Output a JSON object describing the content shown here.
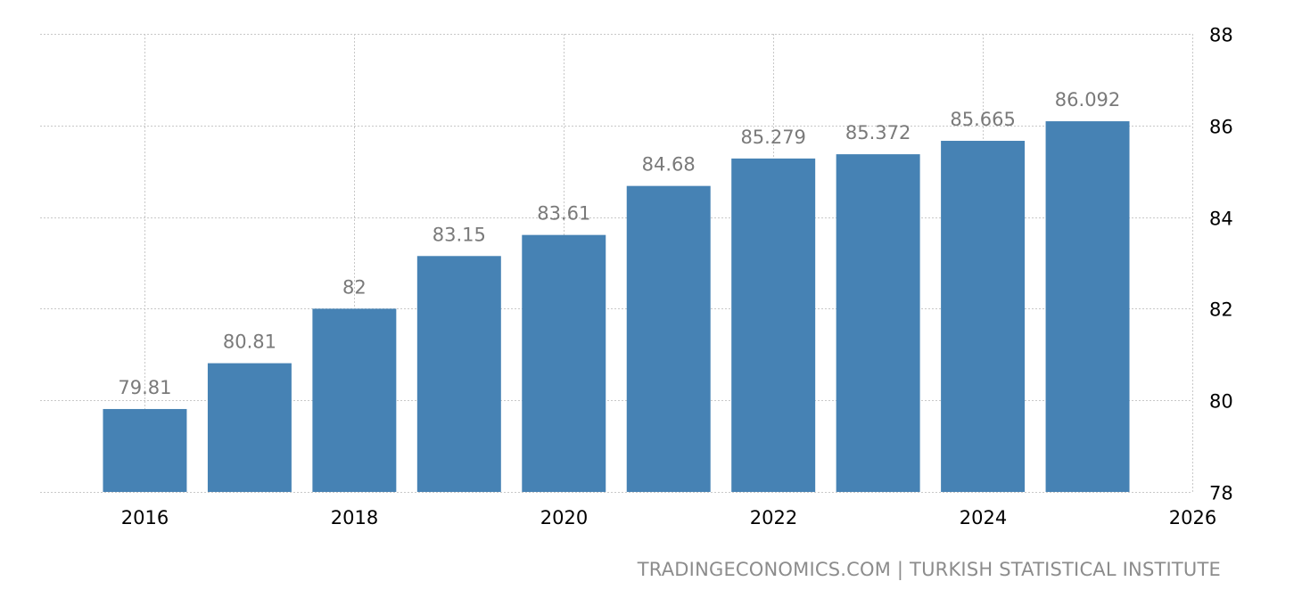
{
  "chart_data": {
    "type": "bar",
    "x": [
      2016,
      2017,
      2018,
      2019,
      2020,
      2021,
      2022,
      2023,
      2024,
      2025
    ],
    "values": [
      79.81,
      80.81,
      82,
      83.15,
      83.61,
      84.68,
      85.279,
      85.372,
      85.665,
      86.092
    ],
    "data_labels": [
      "79.81",
      "80.81",
      "82",
      "83.15",
      "83.61",
      "84.68",
      "85.279",
      "85.372",
      "85.665",
      "86.092"
    ],
    "x_tick_labels": [
      "2016",
      "2018",
      "2020",
      "2022",
      "2024",
      "2026"
    ],
    "x_ticks": [
      2016,
      2018,
      2020,
      2022,
      2024,
      2026
    ],
    "y_ticks": [
      78,
      80,
      82,
      84,
      86,
      88
    ],
    "y_tick_labels": [
      "78",
      "80",
      "82",
      "84",
      "86",
      "88"
    ],
    "ylim": [
      78,
      88
    ],
    "xlim": [
      2015,
      2026
    ],
    "y_axis_side": "right",
    "grid": true,
    "title": "",
    "xlabel": "",
    "ylabel": "",
    "bar_color": "#4682b4"
  },
  "source": {
    "text": "TRADINGECONOMICS.COM | TURKISH STATISTICAL INSTITUTE"
  }
}
